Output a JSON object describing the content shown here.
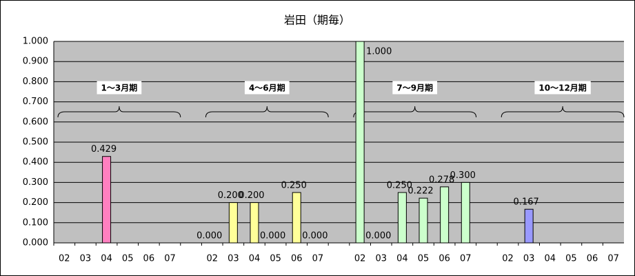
{
  "chart_data": {
    "type": "bar",
    "title": "岩田（期毎）",
    "categories": [
      "02",
      "03",
      "04",
      "05",
      "06",
      "07",
      null,
      "02",
      "03",
      "04",
      "05",
      "06",
      "07",
      null,
      "02",
      "03",
      "04",
      "05",
      "06",
      "07",
      null,
      "02",
      "03",
      "04",
      "05",
      "06",
      "07"
    ],
    "series": [
      {
        "name": "1～3月期",
        "color": "#ff80c0",
        "values": [
          null,
          null,
          0.429,
          null,
          null,
          null,
          null,
          null,
          null,
          null,
          null,
          null,
          null,
          null,
          null,
          null,
          null,
          null,
          null,
          null,
          null,
          null,
          null,
          null,
          null,
          null,
          null
        ],
        "value_labels": [
          null,
          null,
          "0.429",
          null,
          null,
          null,
          null,
          null,
          null,
          null,
          null,
          null,
          null,
          null,
          null,
          null,
          null,
          null,
          null,
          null,
          null,
          null,
          null,
          null,
          null,
          null,
          null
        ]
      },
      {
        "name": "4～6月期",
        "color": "#ffff99",
        "values": [
          null,
          null,
          null,
          null,
          null,
          null,
          null,
          0,
          0.2,
          0.2,
          0,
          0.25,
          0,
          null,
          null,
          null,
          null,
          null,
          null,
          null,
          null,
          null,
          null,
          null,
          null,
          null,
          null
        ],
        "value_labels": [
          null,
          null,
          null,
          null,
          null,
          null,
          null,
          "0.000",
          "0.200",
          "0.200",
          "0.000",
          "0.250",
          "0.000",
          null,
          null,
          null,
          null,
          null,
          null,
          null,
          null,
          null,
          null,
          null,
          null,
          null,
          null
        ]
      },
      {
        "name": "7～9月期",
        "color": "#ccffcc",
        "values": [
          null,
          null,
          null,
          null,
          null,
          null,
          null,
          null,
          null,
          null,
          null,
          null,
          null,
          null,
          1,
          0,
          0.25,
          0.222,
          0.278,
          0.3,
          null,
          null,
          null,
          null,
          null,
          null,
          null
        ],
        "value_labels": [
          null,
          null,
          null,
          null,
          null,
          null,
          null,
          null,
          null,
          null,
          null,
          null,
          null,
          null,
          "1.000",
          "0.000",
          "0.250",
          "0.222",
          "0.278",
          "0.300",
          null,
          null,
          null,
          null,
          null,
          null,
          null
        ]
      },
      {
        "name": "10～12月期",
        "color": "#9999ff",
        "values": [
          null,
          null,
          null,
          null,
          null,
          null,
          null,
          null,
          null,
          null,
          null,
          null,
          null,
          null,
          null,
          null,
          null,
          null,
          null,
          null,
          null,
          null,
          0.167,
          null,
          null,
          null,
          null
        ],
        "value_labels": [
          null,
          null,
          null,
          null,
          null,
          null,
          null,
          null,
          null,
          null,
          null,
          null,
          null,
          null,
          null,
          null,
          null,
          null,
          null,
          null,
          null,
          null,
          "0.167",
          null,
          null,
          null,
          null
        ]
      }
    ],
    "ylim": [
      0,
      1
    ],
    "yticks": [
      {
        "value": 0,
        "label": "0.000"
      },
      {
        "value": 0.1,
        "label": "0.100"
      },
      {
        "value": 0.2,
        "label": "0.200"
      },
      {
        "value": 0.3,
        "label": "0.300"
      },
      {
        "value": 0.4,
        "label": "0.400"
      },
      {
        "value": 0.5,
        "label": "0.500"
      },
      {
        "value": 0.6,
        "label": "0.600"
      },
      {
        "value": 0.7,
        "label": "0.700"
      },
      {
        "value": 0.8,
        "label": "0.800"
      },
      {
        "value": 0.9,
        "label": "0.900"
      },
      {
        "value": 1,
        "label": "1.000"
      }
    ],
    "grid": true
  }
}
